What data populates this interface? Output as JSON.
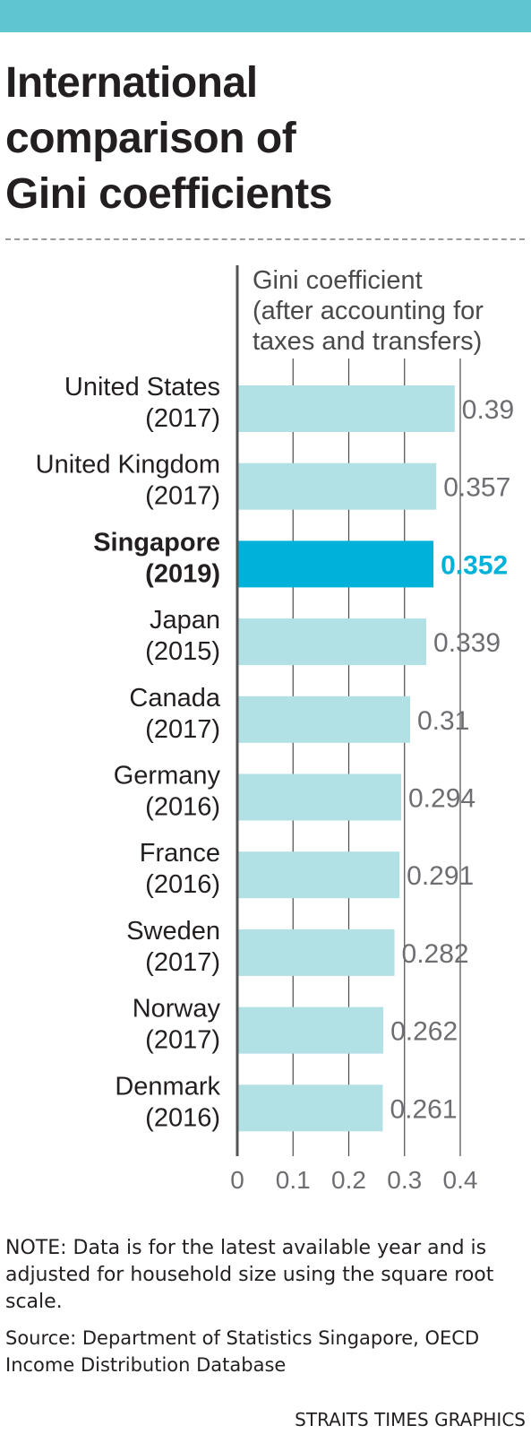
{
  "colors": {
    "top_band": "#5ec5d1",
    "bar": "#b1e0e5",
    "bar_highlight": "#00b2d9",
    "value_highlight": "#00b2d9"
  },
  "title_lines": [
    "International",
    "comparison of",
    "Gini coefficients"
  ],
  "chart_data": {
    "type": "bar",
    "orientation": "horizontal",
    "title": "International comparison of Gini coefficients",
    "axis_label_lines": [
      "Gini coefficient",
      "(after accounting for",
      "taxes and transfers)"
    ],
    "categories": [
      {
        "name": "United States",
        "year": "(2017)",
        "highlight": false
      },
      {
        "name": "United Kingdom",
        "year": "(2017)",
        "highlight": false
      },
      {
        "name": "Singapore",
        "year": "(2019)",
        "highlight": true
      },
      {
        "name": "Japan",
        "year": "(2015)",
        "highlight": false
      },
      {
        "name": "Canada",
        "year": "(2017)",
        "highlight": false
      },
      {
        "name": "Germany",
        "year": "(2016)",
        "highlight": false
      },
      {
        "name": "France",
        "year": "(2016)",
        "highlight": false
      },
      {
        "name": "Sweden",
        "year": "(2017)",
        "highlight": false
      },
      {
        "name": "Norway",
        "year": "(2017)",
        "highlight": false
      },
      {
        "name": "Denmark",
        "year": "(2016)",
        "highlight": false
      }
    ],
    "values": [
      0.39,
      0.357,
      0.352,
      0.339,
      0.31,
      0.294,
      0.291,
      0.282,
      0.262,
      0.261
    ],
    "value_labels": [
      "0.39",
      "0.357",
      "0.352",
      "0.339",
      "0.31",
      "0.294",
      "0.291",
      "0.282",
      "0.262",
      "0.261"
    ],
    "xlim": [
      0,
      0.4
    ],
    "ticks": [
      0,
      0.1,
      0.2,
      0.3,
      0.4
    ],
    "tick_labels": [
      "0",
      "0.1",
      "0.2",
      "0.3",
      "0.4"
    ],
    "grid": true
  },
  "note": "NOTE: Data is for the latest available year and is adjusted for household size using the square root scale.",
  "source": "Source: Department of Statistics Singapore, OECD Income Distribution Database",
  "credit": "STRAITS TIMES GRAPHICS"
}
